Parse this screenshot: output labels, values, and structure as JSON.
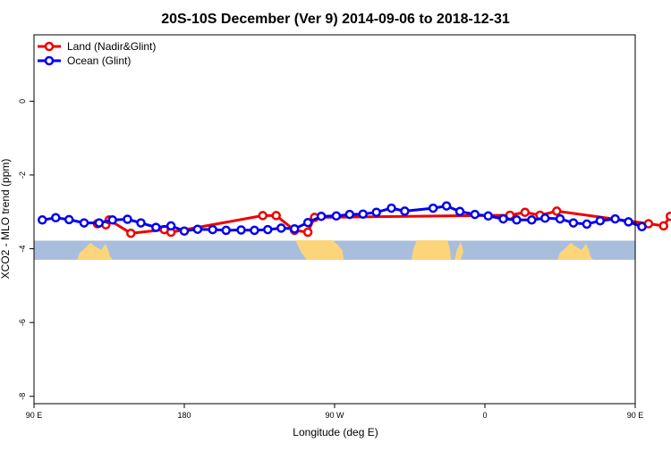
{
  "chart_data": {
    "type": "line",
    "title": "20S-10S December (Ver 9)   2014-09-06 to 2018-12-31",
    "xlabel": "Longitude (deg E)",
    "ylabel": "XCO2 - MLO trend (ppm)",
    "xlim": [
      90,
      450
    ],
    "ylim": [
      -8.2,
      1.8
    ],
    "x_ticks": [
      {
        "value": 90,
        "label": "90 E"
      },
      {
        "value": 180,
        "label": "180"
      },
      {
        "value": 270,
        "label": "90 W"
      },
      {
        "value": 360,
        "label": "0"
      },
      {
        "value": 450,
        "label": "90 E"
      },
      {
        "value": 540,
        "label": "180"
      }
    ],
    "y_ticks": [
      {
        "value": 0,
        "label": "0"
      },
      {
        "value": -2,
        "label": "-2"
      },
      {
        "value": -4,
        "label": "-4"
      },
      {
        "value": -6,
        "label": "-6"
      },
      {
        "value": -8,
        "label": "-8"
      }
    ],
    "grid": false,
    "legend_position": "top-left",
    "colors": {
      "land": "#ee0000",
      "ocean": "#0000ee",
      "map_ocean": "#a9bedd",
      "map_land": "#fcd57a"
    },
    "land_band": {
      "y_top": -3.78,
      "y_bottom": -4.3
    },
    "series": [
      {
        "name": "Land (Nadir&Glint)",
        "color": "#ee0000",
        "points": [
          [
            128,
            -3.32
          ],
          [
            133,
            -3.35
          ],
          [
            135,
            -3.22
          ],
          [
            148,
            -3.58
          ],
          [
            168,
            -3.48
          ],
          [
            172,
            -3.55
          ],
          [
            227,
            -3.1
          ],
          [
            235,
            -3.1
          ],
          [
            246,
            -3.5
          ],
          [
            254,
            -3.55
          ],
          [
            258,
            -3.15
          ],
          [
            375,
            -3.09
          ],
          [
            384,
            -3.01
          ],
          [
            393,
            -3.09
          ],
          [
            403,
            -2.98
          ],
          [
            458,
            -3.32
          ],
          [
            467,
            -3.38
          ],
          [
            471,
            -3.12
          ]
        ]
      },
      {
        "name": "Ocean (Glint)",
        "color": "#0000ee",
        "points": [
          [
            95,
            -3.22
          ],
          [
            103,
            -3.16
          ],
          [
            111,
            -3.21
          ],
          [
            120,
            -3.3
          ],
          [
            129,
            -3.3
          ],
          [
            137,
            -3.22
          ],
          [
            146,
            -3.2
          ],
          [
            154,
            -3.3
          ],
          [
            163,
            -3.42
          ],
          [
            172,
            -3.38
          ],
          [
            180,
            -3.52
          ],
          [
            188,
            -3.47
          ],
          [
            197,
            -3.48
          ],
          [
            205,
            -3.5
          ],
          [
            214,
            -3.49
          ],
          [
            222,
            -3.5
          ],
          [
            230,
            -3.48
          ],
          [
            238,
            -3.44
          ],
          [
            246,
            -3.46
          ],
          [
            254,
            -3.29
          ],
          [
            262,
            -3.12
          ],
          [
            271,
            -3.11
          ],
          [
            279,
            -3.07
          ],
          [
            287,
            -3.06
          ],
          [
            295,
            -3.01
          ],
          [
            304,
            -2.9
          ],
          [
            312,
            -2.98
          ],
          [
            329,
            -2.9
          ],
          [
            337,
            -2.84
          ],
          [
            345,
            -2.99
          ],
          [
            354,
            -3.07
          ],
          [
            362,
            -3.11
          ],
          [
            371,
            -3.19
          ],
          [
            379,
            -3.22
          ],
          [
            388,
            -3.22
          ],
          [
            396,
            -3.17
          ],
          [
            405,
            -3.19
          ],
          [
            413,
            -3.3
          ],
          [
            421,
            -3.33
          ],
          [
            429,
            -3.24
          ],
          [
            438,
            -3.19
          ],
          [
            446,
            -3.27
          ],
          [
            454,
            -3.4
          ]
        ]
      }
    ]
  }
}
